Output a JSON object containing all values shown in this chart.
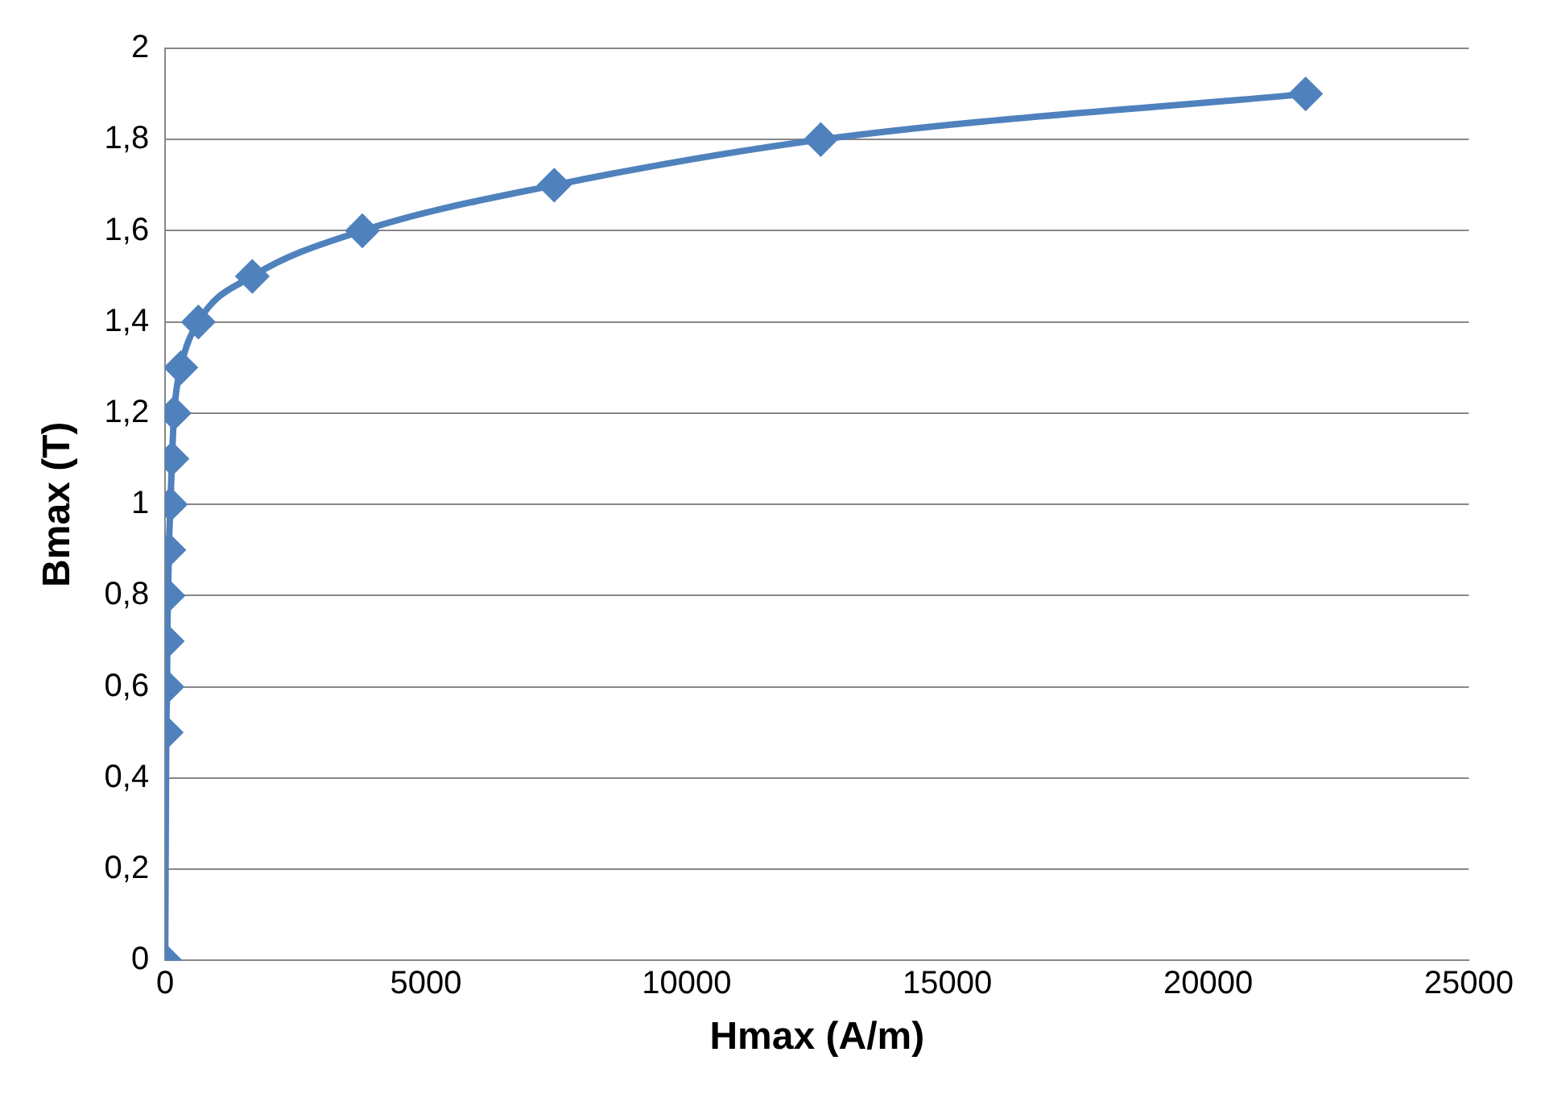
{
  "chart_data": {
    "type": "line",
    "xlabel": "Hmax (A/m)",
    "ylabel": "Bmax (T)",
    "x": [
      0,
      20,
      35,
      40,
      55,
      70,
      100,
      130,
      170,
      300,
      635,
      1670,
      3780,
      7460,
      12570,
      21870
    ],
    "series": [
      {
        "color": "#4f81bd",
        "values": [
          0,
          0.5,
          0.6,
          0.7,
          0.8,
          0.9,
          1.0,
          1.1,
          1.2,
          1.3,
          1.4,
          1.5,
          1.6,
          1.7,
          1.8,
          1.9
        ]
      }
    ],
    "xlim": [
      0,
      25000
    ],
    "xticks": [
      0,
      5000,
      10000,
      15000,
      20000,
      25000
    ],
    "ylim": [
      0,
      2
    ],
    "yticks": [
      0,
      {
        "value": 0.2,
        "label": "0,2"
      },
      {
        "value": 0.4,
        "label": "0,4"
      },
      {
        "value": 0.6,
        "label": "0,6"
      },
      {
        "value": 0.8,
        "label": "0,8"
      },
      1,
      {
        "value": 1.2,
        "label": "1,2"
      },
      {
        "value": 1.4,
        "label": "1,4"
      },
      {
        "value": 1.6,
        "label": "1,6"
      },
      {
        "value": 1.8,
        "label": "1,8"
      },
      2
    ],
    "grid": "y",
    "legend": false,
    "marker": "diamond",
    "line_style": "solid"
  }
}
